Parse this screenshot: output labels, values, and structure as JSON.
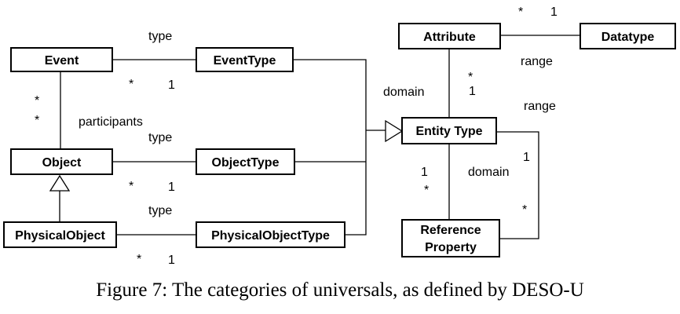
{
  "classes": {
    "event": "Event",
    "event_type": "EventType",
    "object": "Object",
    "object_type": "ObjectType",
    "physical_object": "PhysicalObject",
    "physical_object_type": "PhysicalObjectType",
    "attribute": "Attribute",
    "datatype": "Datatype",
    "entity_type": "Entity Type",
    "reference_property_line1": "Reference",
    "reference_property_line2": "Property"
  },
  "labels": {
    "type": "type",
    "participants": "participants",
    "domain": "domain",
    "range": "range",
    "many": "*",
    "one": "1"
  },
  "caption": "Figure 7: The categories of universals, as defined by DESO-U"
}
